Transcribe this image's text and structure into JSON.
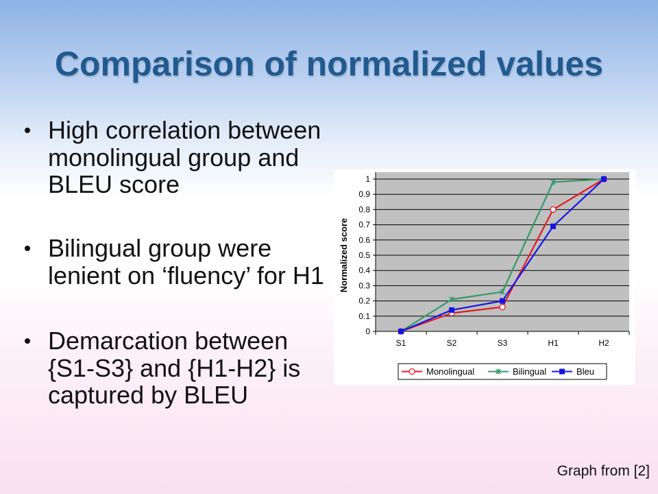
{
  "slide": {
    "title": "Comparison of normalized values",
    "bullets": [
      {
        "lines": [
          "High correlation between",
          "monolingual group and",
          "BLEU score"
        ]
      },
      {
        "lines": [
          "Bilingual group were",
          "lenient on ‘fluency’ for H1"
        ]
      },
      {
        "lines": [
          "Demarcation between",
          "{S1-S3} and {H1-H2} is",
          "captured by BLEU"
        ]
      }
    ],
    "footer": "Graph from [2]"
  },
  "chart_data": {
    "type": "line",
    "categories": [
      "S1",
      "S2",
      "S3",
      "H1",
      "H2"
    ],
    "series": [
      {
        "name": "Monolingual",
        "values": [
          0,
          0.12,
          0.16,
          0.8,
          1
        ],
        "color": "#e31b23",
        "marker": "open-circle"
      },
      {
        "name": "Bilingual",
        "values": [
          0,
          0.21,
          0.26,
          0.98,
          1
        ],
        "color": "#339966",
        "marker": "x"
      },
      {
        "name": "Bleu",
        "values": [
          0,
          0.14,
          0.2,
          0.69,
          1
        ],
        "color": "#1414e6",
        "marker": "square"
      }
    ],
    "xlabel": "",
    "ylabel": "Normalized score",
    "ylim": [
      0,
      1
    ],
    "ytick_labels": [
      "0",
      "0.1",
      "0.2",
      "0.3",
      "0.4",
      "0.5",
      "0.6",
      "0.7",
      "0.8",
      "0.9",
      "1"
    ],
    "grid": true,
    "legend": "bottom",
    "plot_area_color": "#c0c0c0"
  }
}
